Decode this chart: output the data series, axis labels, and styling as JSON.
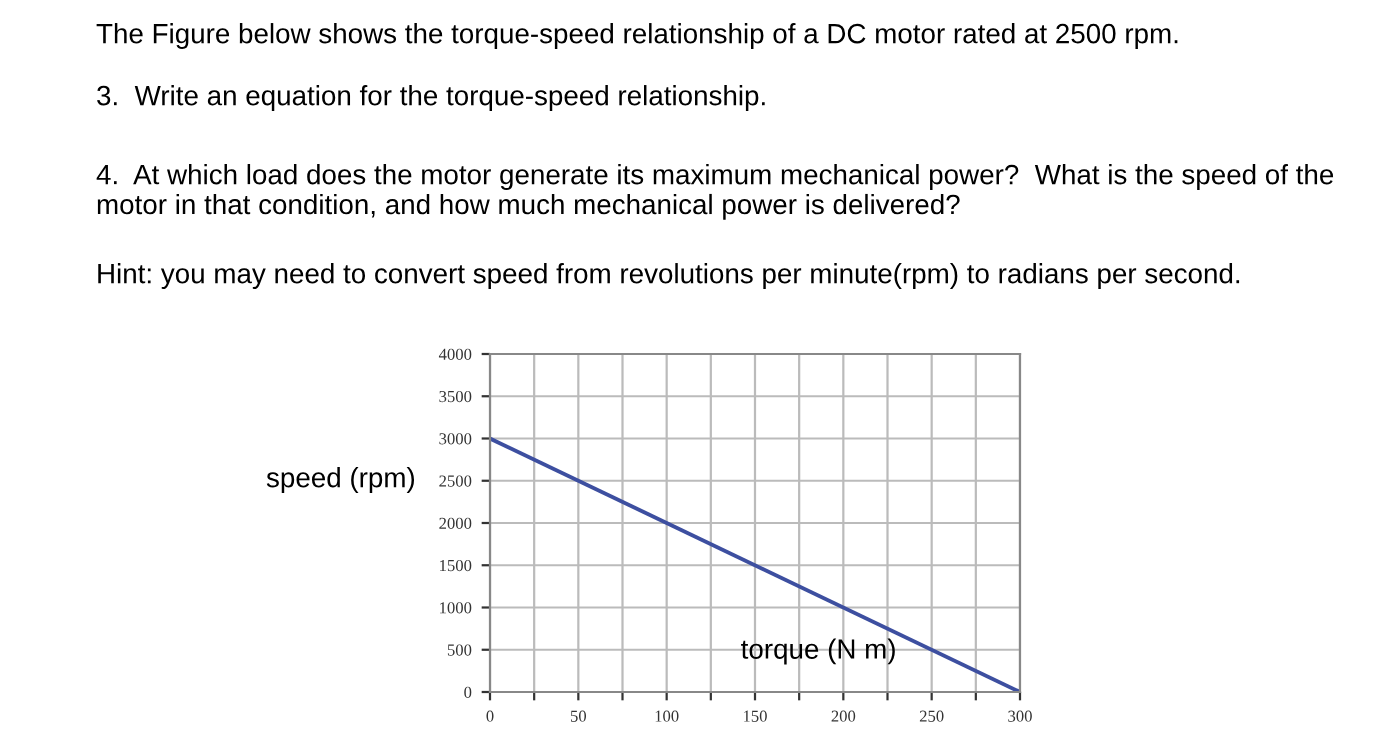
{
  "chart_data": {
    "type": "line",
    "title": "The Figure below shows the torque-speed relationship of a DC motor rated at 2500 rpm.",
    "annotations": [
      "3.  Write an equation for the torque-speed relationship.",
      "4.  At which load does the motor generate its maximum mechanical power?  What is the speed of the motor in that condition, and how much mechanical power is delivered?",
      "Hint: you may need to convert speed from revolutions per minute(rpm) to radians per second."
    ],
    "xlabel": "torque (N m)",
    "ylabel": "speed (rpm)",
    "x": [
      0,
      300
    ],
    "series": [
      {
        "color": "#3d4fa0",
        "values": [
          3000,
          0
        ]
      }
    ],
    "xlim": [
      0,
      300
    ],
    "ylim": [
      0,
      4000
    ],
    "xticks": [
      0,
      {
        "value": 25,
        "label": null
      },
      50,
      {
        "value": 75,
        "label": null
      },
      100,
      {
        "value": 125,
        "label": null
      },
      150,
      {
        "value": 175,
        "label": null
      },
      200,
      {
        "value": 225,
        "label": null
      },
      250,
      {
        "value": 275,
        "label": null
      },
      300
    ],
    "yticks": [
      0,
      500,
      1000,
      1500,
      2000,
      2500,
      3000,
      3500,
      4000
    ],
    "grid": true,
    "marker": "none",
    "line_style": "solid",
    "legend": false
  }
}
